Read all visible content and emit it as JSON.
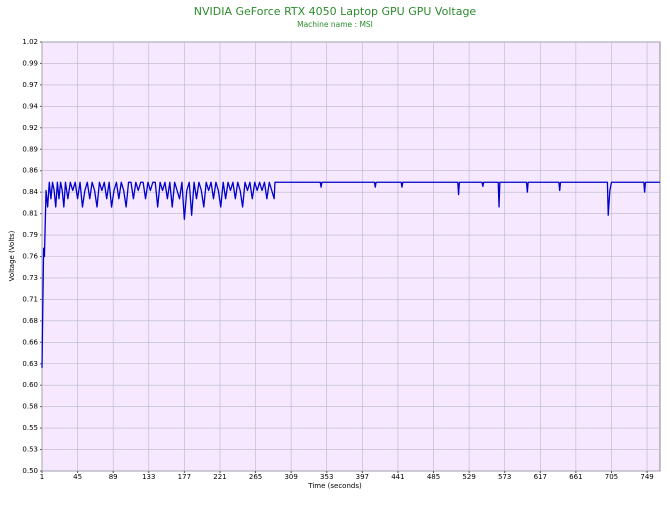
{
  "chart_data": {
    "type": "line",
    "title": "NVIDIA GeForce RTX 4050 Laptop GPU GPU Voltage",
    "subtitle": "Machine name : MSI",
    "x_label": "Time (seconds)",
    "y_label": "Voltage (Volts)",
    "grid": true,
    "xlim": [
      1,
      765
    ],
    "ylim": [
      0.5,
      1.02
    ],
    "xticks": [
      1,
      45,
      89,
      133,
      177,
      221,
      265,
      309,
      353,
      397,
      441,
      485,
      529,
      573,
      617,
      661,
      705,
      749
    ],
    "yticks": [
      {
        "value": 0.5,
        "label": "0.50"
      },
      {
        "value": 0.526,
        "label": "0.53"
      },
      {
        "value": 0.552,
        "label": "0.55"
      },
      {
        "value": 0.578,
        "label": "0.58"
      },
      {
        "value": 0.604,
        "label": "0.60"
      },
      0.63,
      {
        "value": 0.656,
        "label": "0.66"
      },
      {
        "value": 0.682,
        "label": "0.68"
      },
      {
        "value": 0.708,
        "label": "0.71"
      },
      {
        "value": 0.734,
        "label": "0.73"
      },
      0.76,
      {
        "value": 0.786,
        "label": "0.79"
      },
      {
        "value": 0.812,
        "label": "0.81"
      },
      {
        "value": 0.838,
        "label": "0.84"
      },
      {
        "value": 0.864,
        "label": "0.86"
      },
      0.89,
      {
        "value": 0.916,
        "label": "0.92"
      },
      {
        "value": 0.942,
        "label": "0.94"
      },
      {
        "value": 0.968,
        "label": "0.97"
      },
      {
        "value": 0.994,
        "label": "0.99"
      },
      1.02
    ],
    "x": [
      1,
      2,
      3,
      4,
      5,
      6,
      8,
      10,
      12,
      14,
      16,
      18,
      20,
      22,
      24,
      26,
      28,
      30,
      33,
      36,
      39,
      42,
      45,
      48,
      51,
      54,
      57,
      60,
      63,
      66,
      69,
      72,
      75,
      78,
      81,
      84,
      87,
      90,
      93,
      96,
      99,
      102,
      105,
      108,
      111,
      114,
      117,
      120,
      123,
      126,
      129,
      132,
      135,
      138,
      141,
      144,
      147,
      150,
      153,
      156,
      159,
      162,
      165,
      168,
      171,
      174,
      177,
      180,
      183,
      186,
      189,
      192,
      195,
      198,
      201,
      204,
      207,
      210,
      213,
      216,
      219,
      222,
      225,
      228,
      231,
      234,
      237,
      240,
      243,
      246,
      249,
      252,
      255,
      258,
      261,
      264,
      267,
      270,
      273,
      276,
      279,
      282,
      285,
      288,
      289,
      345,
      346,
      347,
      412,
      413,
      414,
      445,
      446,
      447,
      515,
      516,
      517,
      545,
      546,
      547,
      565,
      566,
      567,
      600,
      601,
      602,
      640,
      641,
      642,
      700,
      701,
      703,
      705,
      745,
      746,
      747,
      765
    ],
    "series": [
      {
        "name": "GPU Voltage",
        "color": "#0000cc",
        "values": [
          0.625,
          0.7,
          0.77,
          0.76,
          0.8,
          0.84,
          0.82,
          0.85,
          0.83,
          0.85,
          0.84,
          0.82,
          0.85,
          0.83,
          0.85,
          0.84,
          0.82,
          0.85,
          0.83,
          0.85,
          0.84,
          0.85,
          0.83,
          0.85,
          0.82,
          0.84,
          0.85,
          0.83,
          0.85,
          0.84,
          0.82,
          0.85,
          0.84,
          0.85,
          0.83,
          0.85,
          0.82,
          0.84,
          0.85,
          0.83,
          0.85,
          0.84,
          0.82,
          0.85,
          0.85,
          0.83,
          0.85,
          0.84,
          0.85,
          0.85,
          0.83,
          0.85,
          0.84,
          0.85,
          0.85,
          0.82,
          0.85,
          0.84,
          0.85,
          0.83,
          0.85,
          0.82,
          0.85,
          0.84,
          0.83,
          0.85,
          0.805,
          0.84,
          0.85,
          0.81,
          0.85,
          0.83,
          0.85,
          0.84,
          0.82,
          0.85,
          0.84,
          0.85,
          0.83,
          0.85,
          0.84,
          0.82,
          0.85,
          0.83,
          0.85,
          0.84,
          0.85,
          0.83,
          0.85,
          0.84,
          0.82,
          0.85,
          0.84,
          0.85,
          0.83,
          0.85,
          0.84,
          0.85,
          0.84,
          0.85,
          0.83,
          0.85,
          0.84,
          0.83,
          0.85,
          0.85,
          0.844,
          0.85,
          0.85,
          0.844,
          0.85,
          0.85,
          0.844,
          0.85,
          0.85,
          0.835,
          0.85,
          0.85,
          0.845,
          0.85,
          0.85,
          0.82,
          0.85,
          0.85,
          0.838,
          0.85,
          0.85,
          0.84,
          0.85,
          0.85,
          0.81,
          0.84,
          0.85,
          0.85,
          0.838,
          0.85,
          0.85
        ]
      }
    ]
  }
}
